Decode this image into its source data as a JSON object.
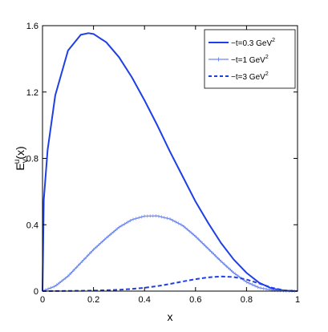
{
  "chart_data": {
    "type": "line",
    "title": "",
    "xlabel": "x",
    "ylabel": "E_v^u(x)",
    "xlim": [
      0,
      1
    ],
    "ylim": [
      0,
      1.6
    ],
    "x_ticks": [
      0,
      0.2,
      0.4,
      0.6,
      0.8,
      1
    ],
    "x_tick_labels": [
      "0",
      "0.2",
      "0.4",
      "0.6",
      "0.8",
      "1"
    ],
    "y_ticks": [
      0,
      0.4,
      0.8,
      1.2,
      1.6
    ],
    "y_tick_labels": [
      "0",
      "0.4",
      "0.8",
      "1.2",
      "1.6"
    ],
    "grid": false,
    "legend_position": "top-right",
    "colors": {
      "series": "#1f3fe6",
      "axis": "#000000"
    },
    "series": [
      {
        "name": "−t=0.3 GeV²",
        "label_main": "−t=0.3 GeV",
        "label_sup": "2",
        "style": "solid-thick",
        "x": [
          0,
          0.005,
          0.02,
          0.05,
          0.1,
          0.15,
          0.18,
          0.2,
          0.25,
          0.3,
          0.35,
          0.4,
          0.45,
          0.5,
          0.55,
          0.6,
          0.65,
          0.7,
          0.75,
          0.8,
          0.85,
          0.9,
          0.95,
          0.98,
          1.0
        ],
        "y": [
          0,
          0.55,
          0.85,
          1.18,
          1.45,
          1.545,
          1.555,
          1.55,
          1.5,
          1.41,
          1.29,
          1.15,
          1.0,
          0.84,
          0.69,
          0.54,
          0.41,
          0.29,
          0.19,
          0.11,
          0.05,
          0.015,
          0.003,
          0.0005,
          0
        ]
      },
      {
        "name": "−t=1 GeV²",
        "label_main": "−t=1 GeV",
        "label_sup": "2",
        "style": "solid-markers",
        "x": [
          0,
          0.05,
          0.1,
          0.15,
          0.2,
          0.25,
          0.3,
          0.35,
          0.4,
          0.45,
          0.5,
          0.55,
          0.6,
          0.65,
          0.7,
          0.75,
          0.8,
          0.85,
          0.9,
          0.95,
          1.0
        ],
        "y": [
          0,
          0.03,
          0.09,
          0.17,
          0.25,
          0.32,
          0.385,
          0.43,
          0.452,
          0.453,
          0.435,
          0.395,
          0.33,
          0.255,
          0.18,
          0.11,
          0.055,
          0.02,
          0.006,
          0.001,
          0
        ]
      },
      {
        "name": "−t=3 GeV²",
        "label_main": "−t=3 GeV",
        "label_sup": "2",
        "style": "dashed",
        "x": [
          0,
          0.1,
          0.2,
          0.3,
          0.35,
          0.4,
          0.45,
          0.5,
          0.55,
          0.6,
          0.65,
          0.7,
          0.75,
          0.8,
          0.85,
          0.9,
          0.95,
          1.0
        ],
        "y": [
          0,
          0.001,
          0.003,
          0.008,
          0.013,
          0.02,
          0.03,
          0.043,
          0.058,
          0.072,
          0.083,
          0.088,
          0.085,
          0.07,
          0.046,
          0.02,
          0.004,
          0
        ]
      }
    ]
  }
}
